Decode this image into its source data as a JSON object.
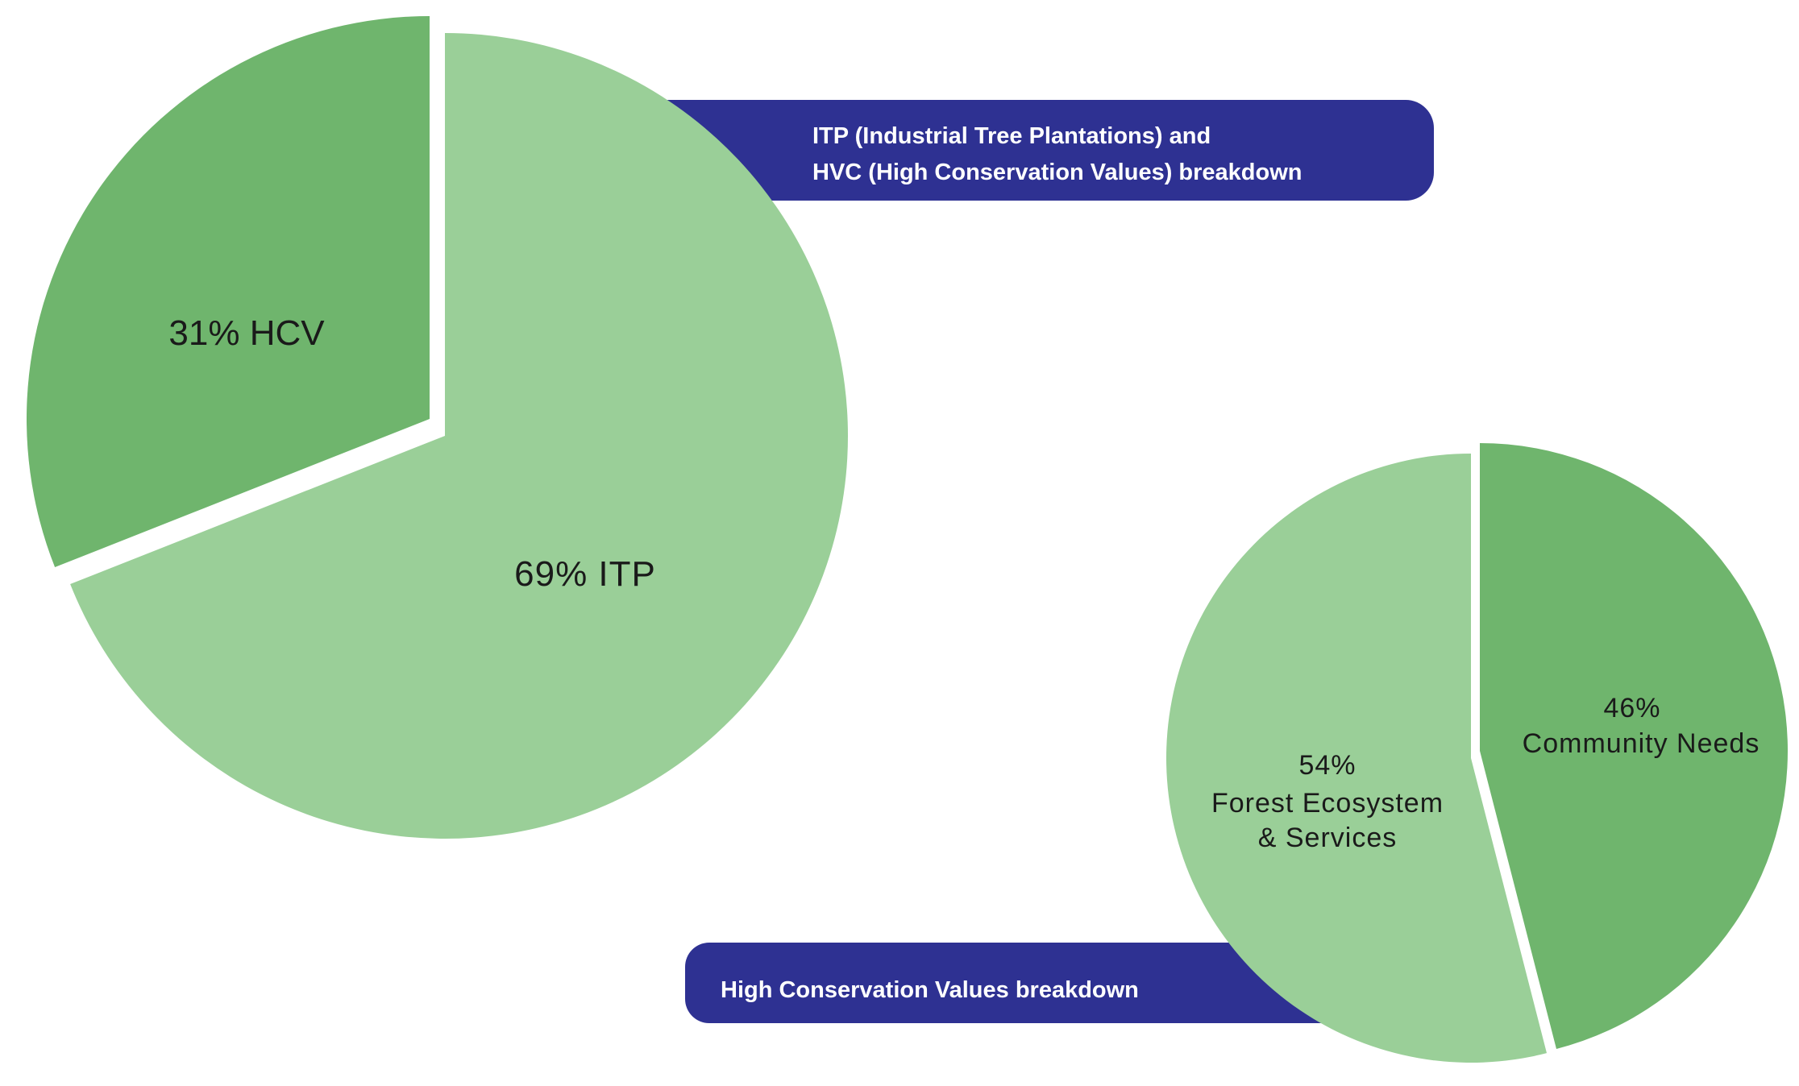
{
  "colors": {
    "light_green": "#9acf98",
    "dark_green": "#6fb56d",
    "navy": "#2e3192"
  },
  "chart_data": [
    {
      "type": "pie",
      "title": "ITP (Industrial Tree Plantations) and HVC (High Conservation Values) breakdown",
      "title_lines": [
        "ITP (Industrial Tree Plantations) and",
        "HVC  (High Conservation Values) breakdown"
      ],
      "slices": [
        {
          "name": "ITP",
          "value": 69,
          "label": "69% ITP",
          "exploded": false
        },
        {
          "name": "HCV",
          "value": 31,
          "label": "31% HCV",
          "exploded": true
        }
      ]
    },
    {
      "type": "pie",
      "title": "High Conservation Values breakdown",
      "slices": [
        {
          "name": "Community Needs",
          "value": 46,
          "label_pct": "46%",
          "label_lines": [
            "Community Needs"
          ]
        },
        {
          "name": "Forest Ecosystem & Services",
          "value": 54,
          "label_pct": "54%",
          "label_lines": [
            "Forest Ecosystem",
            "& Services"
          ]
        }
      ]
    }
  ]
}
